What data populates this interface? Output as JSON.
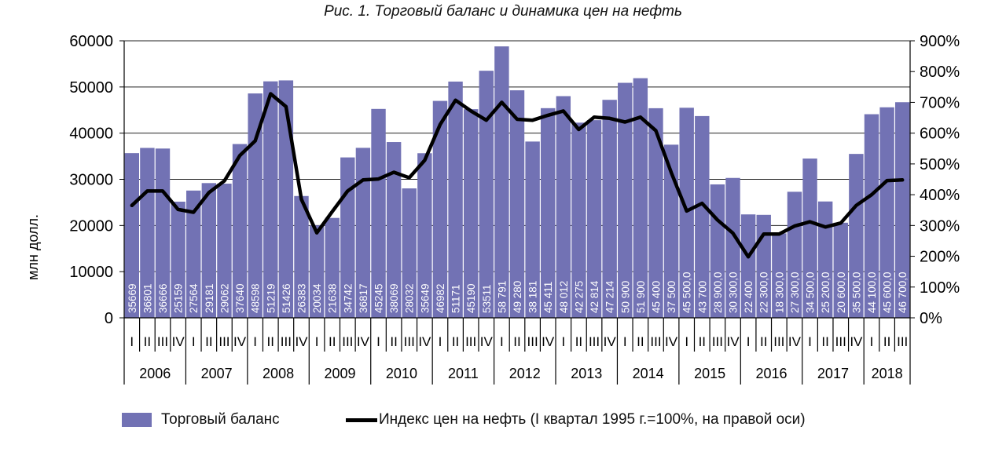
{
  "title": "Рис. 1. Торговый баланс и динамика цен на нефть",
  "colors": {
    "bar": "#7272b4",
    "line": "#000000",
    "grid": "#000000"
  },
  "chart_data": {
    "type": "bar",
    "ylabel": "млн долл.",
    "ylim": [
      0,
      60000
    ],
    "y_ticks": [
      "0",
      "10000",
      "20000",
      "30000",
      "40000",
      "50000",
      "60000"
    ],
    "y2lim": [
      0,
      900
    ],
    "y2_ticks": [
      "0%",
      "100%",
      "200%",
      "300%",
      "400%",
      "500%",
      "600%",
      "700%",
      "800%",
      "900%"
    ],
    "years": [
      "2006",
      "2007",
      "2008",
      "2009",
      "2010",
      "2011",
      "2012",
      "2013",
      "2014",
      "2015",
      "2016",
      "2017",
      "2018"
    ],
    "quarter_labels": [
      "I",
      "II",
      "III",
      "IV"
    ],
    "categories": [
      "2006 I",
      "2006 II",
      "2006 III",
      "2006 IV",
      "2007 I",
      "2007 II",
      "2007 III",
      "2007 IV",
      "2008 I",
      "2008 II",
      "2008 III",
      "2008 IV",
      "2009 I",
      "2009 II",
      "2009 III",
      "2009 IV",
      "2010 I",
      "2010 II",
      "2010 III",
      "2010 IV",
      "2011 I",
      "2011 II",
      "2011 III",
      "2011 IV",
      "2012 I",
      "2012 II",
      "2012 III",
      "2012 IV",
      "2013 I",
      "2013 II",
      "2013 III",
      "2013 IV",
      "2014 I",
      "2014 II",
      "2014 III",
      "2014 IV",
      "2015 I",
      "2015 II",
      "2015 III",
      "2015 IV",
      "2016 I",
      "2016 II",
      "2016 III",
      "2016 IV",
      "2017 I",
      "2017 II",
      "2017 III",
      "2017 IV",
      "2018 I",
      "2018 II",
      "2018 III"
    ],
    "series": [
      {
        "name": "Торговый баланс",
        "type": "bar",
        "axis": "left",
        "values": [
          35669,
          36801,
          36666,
          25159,
          27564,
          29181,
          29062,
          37640,
          48598,
          51219,
          51426,
          26383,
          20034,
          21638,
          34742,
          36817,
          45245,
          38069,
          28032,
          35649,
          46982,
          51171,
          45190,
          53511,
          58791,
          49280,
          38181,
          45411,
          48012,
          42275,
          42814,
          47214,
          50900,
          51900,
          45400,
          37500,
          45500,
          43700,
          28900,
          30300,
          22400,
          22300,
          18300,
          27300,
          34500,
          25200,
          20600,
          35500,
          44100,
          45600,
          46700
        ],
        "labels": [
          "35669",
          "36801",
          "36666",
          "25159",
          "27564",
          "29181",
          "29062",
          "37640",
          "48598",
          "51219",
          "51426",
          "26383",
          "20034",
          "21638",
          "34742",
          "36817",
          "45245",
          "38069",
          "28032",
          "35649",
          "46982",
          "51171",
          "45190",
          "53511",
          "58 791",
          "49 280",
          "38 181",
          "45 411",
          "48 012",
          "42 275",
          "42 814",
          "47 214",
          "50 900",
          "51 900",
          "45 400",
          "37 500",
          "45 500,0",
          "43 700",
          "28 900,0",
          "30 300,0",
          "22 400",
          "22 300,0",
          "18 300,0",
          "27 300,0",
          "34 500,0",
          "25 200,0",
          "20 600,0",
          "35 500,0",
          "44 100,0",
          "45 600,0",
          "46 700,0"
        ]
      },
      {
        "name": "Индекс цен на нефть (I квартал 1995 г.=100%, на правой оси)",
        "type": "line",
        "axis": "right",
        "values": [
          365,
          412,
          412,
          352,
          343,
          407,
          445,
          527,
          575,
          728,
          686,
          385,
          276,
          345,
          412,
          448,
          451,
          473,
          455,
          512,
          628,
          707,
          672,
          642,
          700,
          645,
          642,
          658,
          672,
          612,
          652,
          648,
          636,
          652,
          608,
          472,
          347,
          372,
          318,
          275,
          198,
          272,
          272,
          298,
          312,
          295,
          308,
          365,
          400,
          446,
          448
        ]
      }
    ]
  }
}
